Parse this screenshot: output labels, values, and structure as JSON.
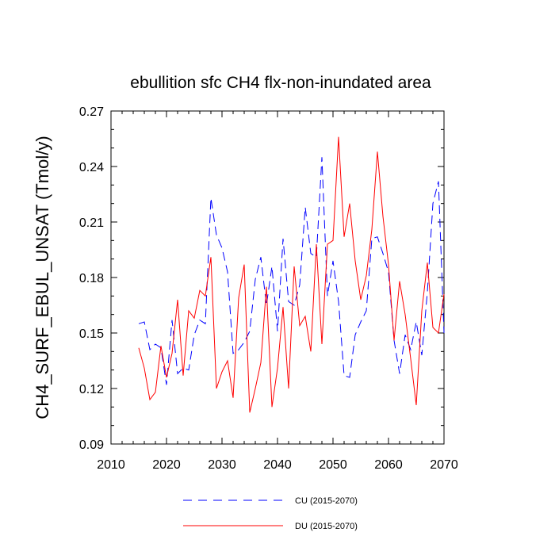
{
  "chart_data": {
    "type": "line",
    "title": "ebullition sfc CH4 flx-non-inundated area",
    "xlabel": "",
    "ylabel": "CH4_SURF_EBUL_UNSAT  (Tmol/y)",
    "xlim": [
      2010,
      2070
    ],
    "ylim": [
      0.09,
      0.27
    ],
    "x_ticks": [
      2010,
      2020,
      2030,
      2040,
      2050,
      2060,
      2070
    ],
    "x_tick_labels": [
      "2010",
      "2020",
      "2030",
      "2040",
      "2050",
      "2060",
      "2070"
    ],
    "y_ticks": [
      0.09,
      0.12,
      0.15,
      0.18,
      0.21,
      0.24,
      0.27
    ],
    "y_tick_labels": [
      "0.09",
      "0.12",
      "0.15",
      "0.18",
      "0.21",
      "0.24",
      "0.27"
    ],
    "legend_position": "bottom",
    "x": [
      2015,
      2016,
      2017,
      2018,
      2019,
      2020,
      2021,
      2022,
      2023,
      2024,
      2025,
      2026,
      2027,
      2028,
      2029,
      2030,
      2031,
      2032,
      2033,
      2034,
      2035,
      2036,
      2037,
      2038,
      2039,
      2040,
      2041,
      2042,
      2043,
      2044,
      2045,
      2046,
      2047,
      2048,
      2049,
      2050,
      2051,
      2052,
      2053,
      2054,
      2055,
      2056,
      2057,
      2058,
      2059,
      2060,
      2061,
      2062,
      2063,
      2064,
      2065,
      2066,
      2067,
      2068,
      2069,
      2070
    ],
    "series": [
      {
        "name": "CU (2015-2070)",
        "color": "#0000ff",
        "dash": "dashed",
        "values": [
          0.155,
          0.156,
          0.141,
          0.144,
          0.142,
          0.122,
          0.157,
          0.128,
          0.131,
          0.13,
          0.149,
          0.157,
          0.155,
          0.223,
          0.203,
          0.196,
          0.183,
          0.139,
          0.141,
          0.145,
          0.151,
          0.179,
          0.191,
          0.165,
          0.186,
          0.151,
          0.201,
          0.167,
          0.165,
          0.176,
          0.218,
          0.193,
          0.191,
          0.245,
          0.17,
          0.189,
          0.167,
          0.127,
          0.126,
          0.149,
          0.156,
          0.162,
          0.201,
          0.202,
          0.193,
          0.183,
          0.146,
          0.128,
          0.149,
          0.141,
          0.156,
          0.138,
          0.172,
          0.22,
          0.232,
          0.15
        ]
      },
      {
        "name": "DU (2015-2070)",
        "color": "#ff0000",
        "dash": "solid",
        "values": [
          0.142,
          0.131,
          0.114,
          0.118,
          0.143,
          0.126,
          0.139,
          0.168,
          0.127,
          0.162,
          0.158,
          0.173,
          0.17,
          0.191,
          0.12,
          0.129,
          0.135,
          0.115,
          0.169,
          0.187,
          0.107,
          0.12,
          0.134,
          0.175,
          0.11,
          0.131,
          0.164,
          0.12,
          0.186,
          0.154,
          0.159,
          0.14,
          0.198,
          0.144,
          0.198,
          0.2,
          0.256,
          0.202,
          0.22,
          0.189,
          0.168,
          0.181,
          0.206,
          0.248,
          0.213,
          0.187,
          0.146,
          0.178,
          0.16,
          0.136,
          0.111,
          0.162,
          0.188,
          0.153,
          0.15,
          0.171
        ]
      }
    ]
  }
}
